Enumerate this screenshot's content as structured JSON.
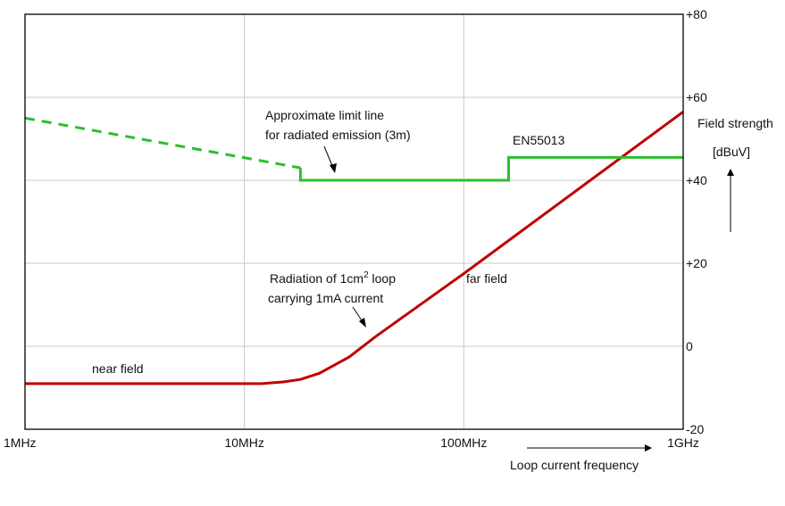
{
  "chart_data": {
    "type": "line",
    "x_scale": "log",
    "xlim": [
      "1MHz",
      "1GHz"
    ],
    "ylim": [
      -20,
      80
    ],
    "grid": true,
    "x_ticks": [
      {
        "value_mhz": 1,
        "label": "1MHz"
      },
      {
        "value_mhz": 10,
        "label": "10MHz"
      },
      {
        "value_mhz": 100,
        "label": "100MHz"
      },
      {
        "value_mhz": 1000,
        "label": "1GHz"
      }
    ],
    "y_ticks": [
      {
        "value": 80,
        "label": "+80"
      },
      {
        "value": 60,
        "label": "+60"
      },
      {
        "value": 40,
        "label": "+40"
      },
      {
        "value": 20,
        "label": "+20"
      },
      {
        "value": 0,
        "label": "0"
      },
      {
        "value": -20,
        "label": "-20"
      }
    ],
    "xlabel": "Loop current frequency",
    "ylabel": [
      "Field strength",
      "[dBuV]"
    ],
    "series": [
      {
        "color": "#c00000",
        "style": "solid",
        "points_mhz_dbuv": [
          [
            1,
            -9
          ],
          [
            10,
            -9
          ],
          [
            12,
            -9
          ],
          [
            15,
            -8.6
          ],
          [
            18,
            -8
          ],
          [
            22,
            -6.5
          ],
          [
            30,
            -2.6
          ],
          [
            40,
            2.5
          ],
          [
            100,
            17.5
          ],
          [
            1000,
            56.5
          ]
        ]
      },
      {
        "color": "#2bbf2b",
        "style": "dashed",
        "points_mhz_dbuv": [
          [
            1,
            55
          ],
          [
            18,
            43
          ]
        ]
      },
      {
        "color": "#2bbf2b",
        "style": "solid",
        "points_mhz_dbuv": [
          [
            18,
            43
          ],
          [
            18,
            40
          ],
          [
            160,
            40
          ],
          [
            160,
            45.5
          ],
          [
            1000,
            45.5
          ]
        ]
      }
    ],
    "annotations": {
      "limit_line": [
        "Approximate limit line",
        "for radiated emission (3m)"
      ],
      "standard": "EN55013",
      "loop_line1_prefix": "Radiation of 1cm",
      "loop_line1_sup": "2",
      "loop_line1_suffix": " loop",
      "loop_line2": "carrying 1mA current",
      "far_field": "far field",
      "near_field": "near field"
    }
  },
  "colors": {
    "grid": "#c8c8c8",
    "axis": "#000000",
    "emission": "#c00000",
    "limit": "#2bbf2b"
  }
}
